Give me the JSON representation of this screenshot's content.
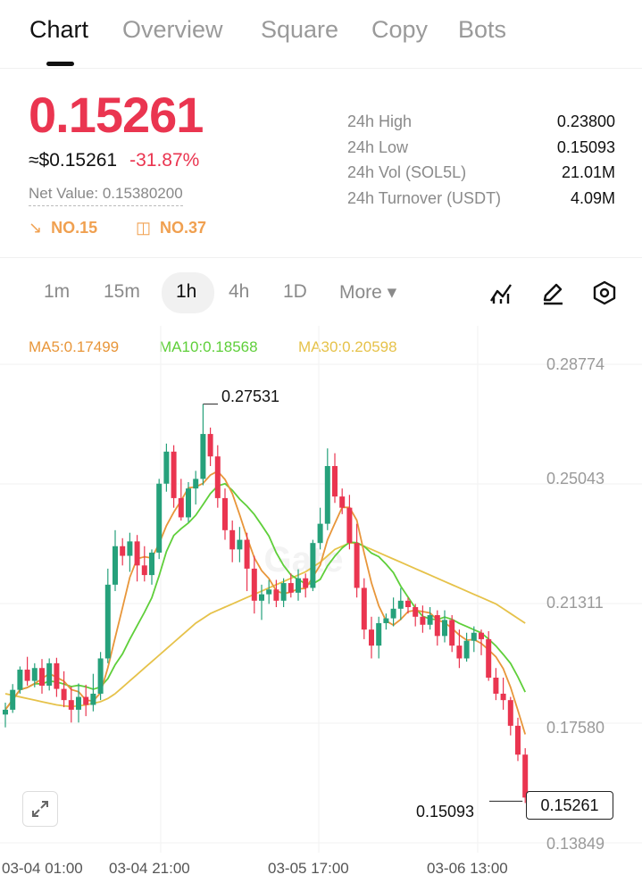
{
  "tabs": [
    {
      "label": "Chart",
      "active": true
    },
    {
      "label": "Overview",
      "active": false
    },
    {
      "label": "Square",
      "active": false
    },
    {
      "label": "Copy",
      "active": false
    },
    {
      "label": "Bots",
      "active": false
    }
  ],
  "ticker": {
    "price": "0.15261",
    "usd_price": "≈$0.15261",
    "change_pct": "-31.87%",
    "net_value": "Net Value: 0.15380200",
    "rank_down": "NO.15",
    "rank_list": "NO.37"
  },
  "stats": [
    {
      "label": "24h  High",
      "value": "0.23800"
    },
    {
      "label": "24h  Low",
      "value": "0.15093"
    },
    {
      "label": "24h  Vol (SOL5L)",
      "value": "21.01M"
    },
    {
      "label": "24h  Turnover (USDT)",
      "value": "4.09M"
    }
  ],
  "timeframes": [
    {
      "label": "1m",
      "active": false
    },
    {
      "label": "15m",
      "active": false
    },
    {
      "label": "1h",
      "active": true
    },
    {
      "label": "4h",
      "active": false
    },
    {
      "label": "1D",
      "active": false
    },
    {
      "label": "More ▾",
      "active": false
    }
  ],
  "tool_icons": [
    "indicator-icon",
    "draw-pencil-icon",
    "settings-hexagon-icon"
  ],
  "ma": {
    "ma5": "MA5:0.17499",
    "ma10": "MA10:0.18568",
    "ma30": "MA30:0.20598"
  },
  "colors": {
    "up": "#26a17b",
    "down": "#ea3550",
    "ma5": "#e8963a",
    "ma10": "#5fcf3a",
    "ma30": "#e6c24a"
  },
  "chart_data": {
    "type": "candlestick",
    "interval": "1h",
    "y_ticks": [
      "0.28774",
      "0.25043",
      "0.21311",
      "0.17580",
      "0.13849"
    ],
    "x_ticks": [
      "03-04 01:00",
      "03-04 21:00",
      "03-05 17:00",
      "03-06 13:00"
    ],
    "ylim": [
      0.1385,
      0.2877
    ],
    "high_marker": "0.27531",
    "low_marker": "0.15093",
    "current_price": "0.15261",
    "candles": [
      [
        0.1785,
        0.1822,
        0.1745,
        0.18
      ],
      [
        0.18,
        0.188,
        0.179,
        0.1862
      ],
      [
        0.1862,
        0.1935,
        0.185,
        0.1925
      ],
      [
        0.1925,
        0.1965,
        0.1875,
        0.189
      ],
      [
        0.189,
        0.1945,
        0.187,
        0.193
      ],
      [
        0.193,
        0.1958,
        0.185,
        0.1875
      ],
      [
        0.1875,
        0.196,
        0.186,
        0.1945
      ],
      [
        0.1945,
        0.1962,
        0.184,
        0.1865
      ],
      [
        0.1865,
        0.192,
        0.1808,
        0.183
      ],
      [
        0.183,
        0.1872,
        0.176,
        0.18
      ],
      [
        0.18,
        0.1882,
        0.176,
        0.184
      ],
      [
        0.184,
        0.1878,
        0.178,
        0.1815
      ],
      [
        0.1815,
        0.1912,
        0.1795,
        0.185
      ],
      [
        0.185,
        0.198,
        0.183,
        0.196
      ],
      [
        0.196,
        0.224,
        0.1945,
        0.219
      ],
      [
        0.219,
        0.236,
        0.217,
        0.231
      ],
      [
        0.231,
        0.2335,
        0.225,
        0.228
      ],
      [
        0.228,
        0.2352,
        0.223,
        0.2325
      ],
      [
        0.2325,
        0.2345,
        0.22,
        0.225
      ],
      [
        0.225,
        0.231,
        0.22,
        0.222
      ],
      [
        0.222,
        0.23,
        0.219,
        0.229
      ],
      [
        0.229,
        0.252,
        0.227,
        0.2505
      ],
      [
        0.2505,
        0.263,
        0.248,
        0.2605
      ],
      [
        0.2605,
        0.2625,
        0.243,
        0.246
      ],
      [
        0.246,
        0.252,
        0.239,
        0.24
      ],
      [
        0.24,
        0.251,
        0.2385,
        0.249
      ],
      [
        0.249,
        0.2545,
        0.244,
        0.252
      ],
      [
        0.252,
        0.2753,
        0.25,
        0.266
      ],
      [
        0.266,
        0.268,
        0.256,
        0.259
      ],
      [
        0.259,
        0.2625,
        0.243,
        0.246
      ],
      [
        0.246,
        0.249,
        0.233,
        0.236
      ],
      [
        0.236,
        0.239,
        0.226,
        0.23
      ],
      [
        0.23,
        0.237,
        0.226,
        0.233
      ],
      [
        0.233,
        0.2352,
        0.217,
        0.224
      ],
      [
        0.224,
        0.228,
        0.21,
        0.214
      ],
      [
        0.214,
        0.219,
        0.208,
        0.216
      ],
      [
        0.216,
        0.2205,
        0.213,
        0.2175
      ],
      [
        0.2175,
        0.2205,
        0.212,
        0.214
      ],
      [
        0.214,
        0.221,
        0.212,
        0.2195
      ],
      [
        0.2195,
        0.2225,
        0.215,
        0.2165
      ],
      [
        0.2165,
        0.2238,
        0.214,
        0.221
      ],
      [
        0.221,
        0.2225,
        0.215,
        0.218
      ],
      [
        0.218,
        0.233,
        0.217,
        0.232
      ],
      [
        0.232,
        0.243,
        0.23,
        0.238
      ],
      [
        0.238,
        0.2615,
        0.236,
        0.256
      ],
      [
        0.256,
        0.26,
        0.2445,
        0.2465
      ],
      [
        0.2465,
        0.249,
        0.241,
        0.243
      ],
      [
        0.243,
        0.247,
        0.23,
        0.232
      ],
      [
        0.232,
        0.238,
        0.215,
        0.218
      ],
      [
        0.218,
        0.221,
        0.202,
        0.205
      ],
      [
        0.205,
        0.209,
        0.196,
        0.2
      ],
      [
        0.2,
        0.209,
        0.196,
        0.207
      ],
      [
        0.207,
        0.21,
        0.205,
        0.2085
      ],
      [
        0.2085,
        0.215,
        0.206,
        0.2115
      ],
      [
        0.2115,
        0.218,
        0.208,
        0.214
      ],
      [
        0.214,
        0.215,
        0.21,
        0.212
      ],
      [
        0.212,
        0.213,
        0.206,
        0.209
      ],
      [
        0.209,
        0.2125,
        0.204,
        0.2065
      ],
      [
        0.2065,
        0.212,
        0.205,
        0.2095
      ],
      [
        0.2095,
        0.211,
        0.2,
        0.203
      ],
      [
        0.203,
        0.211,
        0.201,
        0.208
      ],
      [
        0.208,
        0.2095,
        0.198,
        0.2
      ],
      [
        0.2,
        0.205,
        0.193,
        0.196
      ],
      [
        0.196,
        0.204,
        0.195,
        0.2015
      ],
      [
        0.2015,
        0.206,
        0.198,
        0.204
      ],
      [
        0.204,
        0.205,
        0.197,
        0.202
      ],
      [
        0.202,
        0.2045,
        0.189,
        0.19
      ],
      [
        0.19,
        0.193,
        0.183,
        0.185
      ],
      [
        0.185,
        0.19,
        0.18,
        0.183
      ],
      [
        0.183,
        0.184,
        0.172,
        0.175
      ],
      [
        0.175,
        0.1775,
        0.164,
        0.166
      ],
      [
        0.166,
        0.168,
        0.1509,
        0.1526
      ]
    ]
  }
}
